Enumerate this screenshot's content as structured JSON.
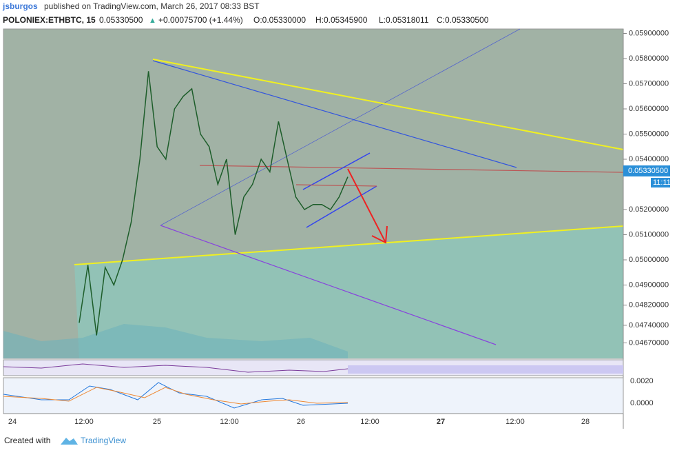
{
  "header": {
    "user": "jsburgos",
    "published": "published on TradingView.com, March 26, 2017 08:33 BST"
  },
  "symbol": {
    "name": "POLONIEX:ETHBTC, 15",
    "last": "0.05330500",
    "change": "+0.00075700 (+1.44%)",
    "open": "O:0.05330000",
    "high": "H:0.05345900",
    "low": "L:0.05318011",
    "close": "C:0.05330500"
  },
  "price_axis": {
    "ticks": [
      {
        "value": 0.059,
        "label": "0.05900000"
      },
      {
        "value": 0.058,
        "label": "0.05800000"
      },
      {
        "value": 0.057,
        "label": "0.05700000"
      },
      {
        "value": 0.056,
        "label": "0.05600000"
      },
      {
        "value": 0.055,
        "label": "0.05500000"
      },
      {
        "value": 0.054,
        "label": "0.05400000"
      },
      {
        "value": 0.052,
        "label": "0.05200000"
      },
      {
        "value": 0.051,
        "label": "0.05100000"
      },
      {
        "value": 0.05,
        "label": "0.05000000"
      },
      {
        "value": 0.049,
        "label": "0.04900000"
      },
      {
        "value": 0.0482,
        "label": "0.04820000"
      },
      {
        "value": 0.0474,
        "label": "0.04740000"
      },
      {
        "value": 0.0467,
        "label": "0.04670000"
      }
    ],
    "last_price": {
      "value": 0.053305,
      "label": "0.05330500"
    },
    "countdown": "11:11"
  },
  "closes": [
    0.0475,
    0.0498,
    0.047,
    0.0497,
    0.049,
    0.05,
    0.0515,
    0.054,
    0.0575,
    0.0545,
    0.054,
    0.056,
    0.0565,
    0.0568,
    0.055,
    0.0545,
    0.053,
    0.054,
    0.051,
    0.0525,
    0.053,
    0.054,
    0.0535,
    0.0555,
    0.054,
    0.0525,
    0.052,
    0.0522,
    0.0522,
    0.052,
    0.0525,
    0.0533
  ],
  "macd_axis": {
    "ticks": [
      "0.0020",
      "0.0000"
    ]
  },
  "time_axis": {
    "labels": [
      "24",
      "12:00",
      "25",
      "12:00",
      "26",
      "12:00",
      "27",
      "12:00",
      "28"
    ]
  },
  "footer": {
    "created": "Created with",
    "brand": "TradingView"
  }
}
